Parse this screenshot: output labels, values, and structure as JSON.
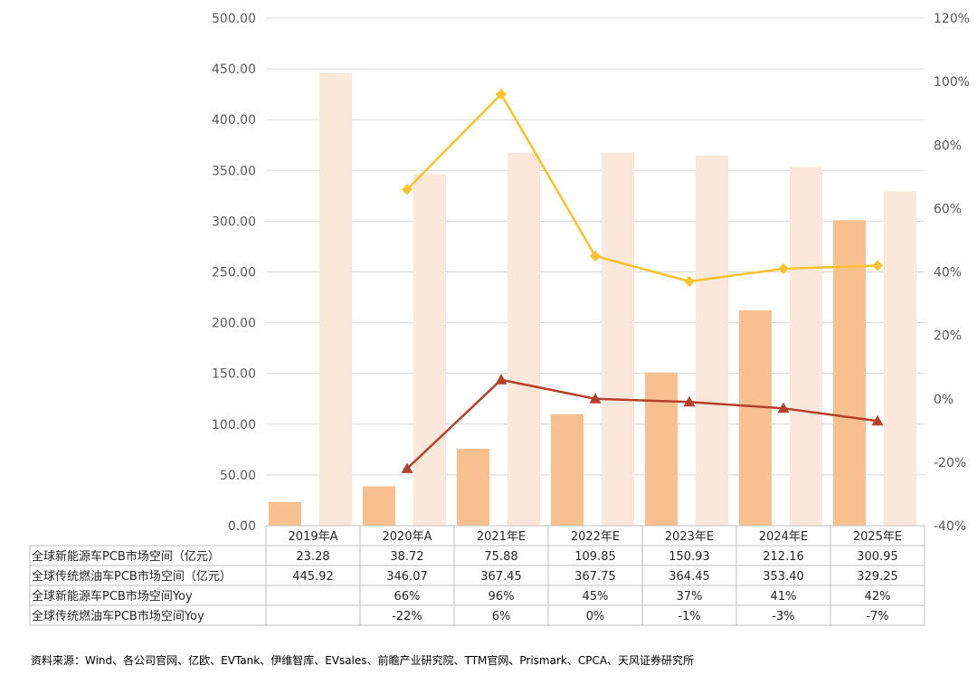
{
  "colors": {
    "nev_bar": "#F8C08F",
    "ice_bar": "#FCE8DB",
    "nev_yoy": "#F9C22E",
    "ice_yoy": "#B5402B",
    "grid": "#D9D9D9",
    "table_border": "#BFBFBF"
  },
  "chart_data": {
    "type": "bar",
    "categories": [
      "2019年A",
      "2020年A",
      "2021年E",
      "2022年E",
      "2023年E",
      "2024年E",
      "2025年E"
    ],
    "series": [
      {
        "name": "全球新能源车PCB市场空间（亿元）",
        "kind": "bar",
        "axis": "left",
        "values": [
          23.28,
          38.72,
          75.88,
          109.85,
          150.93,
          212.16,
          300.95
        ],
        "labels": [
          "23.28",
          "38.72",
          "75.88",
          "109.85",
          "150.93",
          "212.16",
          "300.95"
        ]
      },
      {
        "name": "全球传统燃油车PCB市场空间（亿元）",
        "kind": "bar",
        "axis": "left",
        "values": [
          445.92,
          346.07,
          367.45,
          367.75,
          364.45,
          353.4,
          329.25
        ],
        "labels": [
          "445.92",
          "346.07",
          "367.45",
          "367.75",
          "364.45",
          "353.40",
          "329.25"
        ]
      },
      {
        "name": "全球新能源车PCB市场空间Yoy",
        "kind": "line",
        "axis": "right",
        "marker": "diamond",
        "values": [
          null,
          66,
          96,
          45,
          37,
          41,
          42
        ],
        "labels": [
          "",
          "66%",
          "96%",
          "45%",
          "37%",
          "41%",
          "42%"
        ]
      },
      {
        "name": "全球传统燃油车PCB市场空间Yoy",
        "kind": "line",
        "axis": "right",
        "marker": "triangle",
        "values": [
          null,
          -22,
          6,
          0,
          -1,
          -3,
          -7
        ],
        "labels": [
          "",
          "-22%",
          "6%",
          "0%",
          "-1%",
          "-3%",
          "-7%"
        ]
      }
    ],
    "y_left": {
      "min": 0,
      "max": 500,
      "ticks": [
        "0.00",
        "50.00",
        "100.00",
        "150.00",
        "200.00",
        "250.00",
        "300.00",
        "350.00",
        "400.00",
        "450.00",
        "500.00"
      ]
    },
    "y_right": {
      "min": -40,
      "max": 120,
      "ticks": [
        "-40%",
        "-20%",
        "0%",
        "20%",
        "40%",
        "60%",
        "80%",
        "100%",
        "120%"
      ]
    },
    "grid": true,
    "legend": "data table below chart"
  },
  "source_note": "资料来源：Wind、各公司官网、亿欧、EVTank、伊维智库、EVsales、前瞻产业研究院、TTM官网、Prismark、CPCA、天风证券研究所"
}
